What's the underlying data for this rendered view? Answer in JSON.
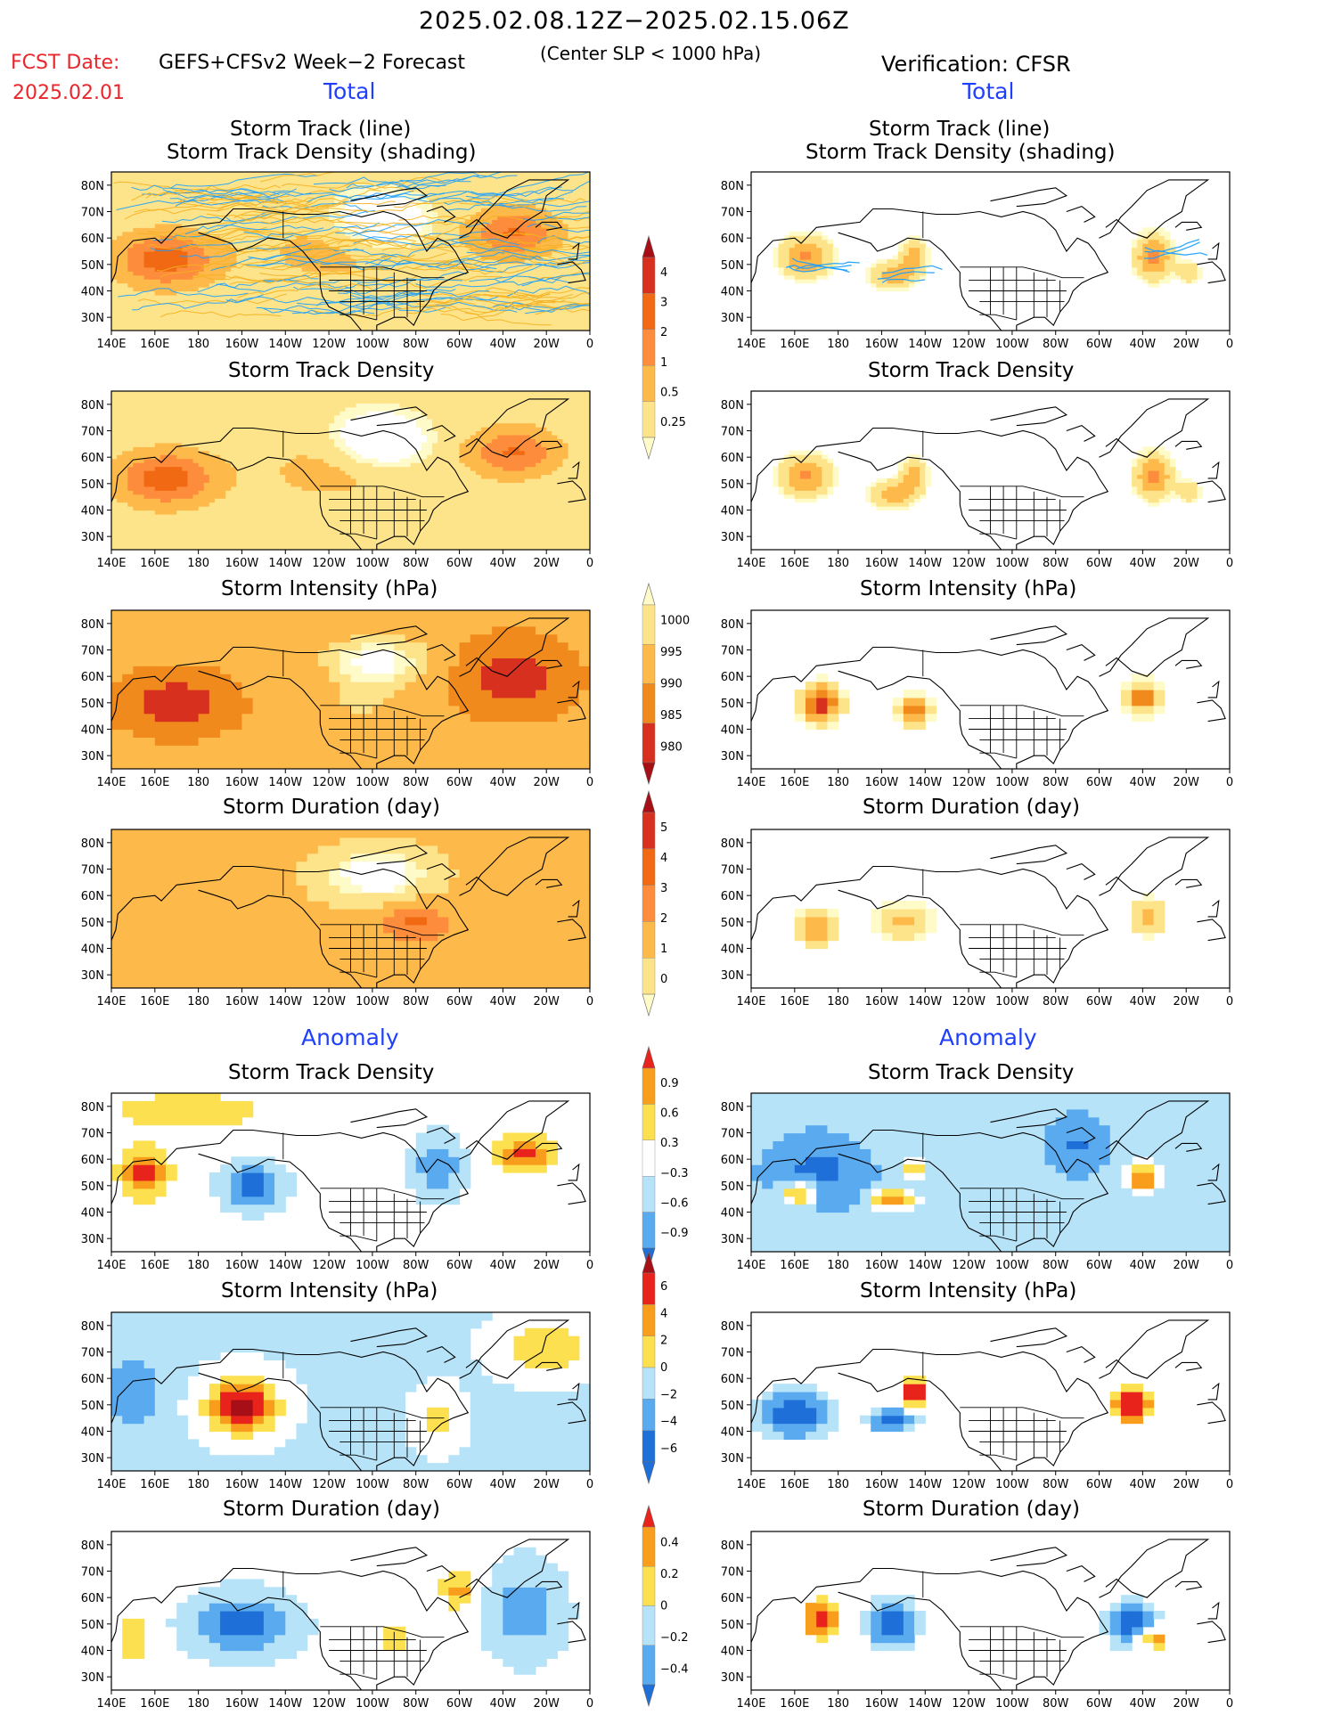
{
  "header": {
    "period": "2025.02.08.12Z−2025.02.15.06Z",
    "fcst_date_label": "FCST Date:",
    "fcst_date_value": "2025.02.01",
    "model_label": "GEFS+CFSv2 Week−2 Forecast",
    "criterion": "(Center SLP < 1000 hPa)",
    "verification": "Verification: CFSR"
  },
  "section_labels": {
    "total": "Total",
    "anomaly": "Anomaly"
  },
  "axes": {
    "lon_ticks": [
      "140E",
      "160E",
      "180",
      "160W",
      "140W",
      "120W",
      "100W",
      "80W",
      "60W",
      "40W",
      "20W",
      "0"
    ],
    "lat_ticks": [
      "30N",
      "40N",
      "50N",
      "60N",
      "70N",
      "80N"
    ]
  },
  "colors": {
    "red_text": "#e8262c",
    "blue_text": "#1f3fff",
    "map_line": "#000000",
    "track_line_blue": "#1a9fff",
    "track_line_orange": "#f5b020"
  },
  "panel_titles": {
    "track_line_1": "Storm Track (line)",
    "track_line_2": "Storm Track Density (shading)",
    "density": "Storm Track Density",
    "intensity": "Storm Intensity (hPa)",
    "duration": "Storm Duration (day)"
  },
  "colorbars": [
    {
      "name": "density-total",
      "labels": [
        "4",
        "3",
        "2",
        "1",
        "0.5",
        "0.25"
      ],
      "colors": [
        "#a50f15",
        "#d7301f",
        "#f16913",
        "#fd8d3c",
        "#fdb94a",
        "#fde48a",
        "#fffbc8"
      ]
    },
    {
      "name": "intensity-total",
      "labels": [
        "1000",
        "995",
        "990",
        "985",
        "980"
      ],
      "colors": [
        "#fffbc8",
        "#fde48a",
        "#fdb94a",
        "#f08a1c",
        "#d7301f",
        "#a50f15"
      ]
    },
    {
      "name": "duration-total",
      "labels": [
        "5",
        "4",
        "3",
        "2",
        "1",
        "0"
      ],
      "colors": [
        "#a50f15",
        "#d7301f",
        "#f16913",
        "#fd8d3c",
        "#fdb94a",
        "#fde48a",
        "#fffbc8"
      ]
    },
    {
      "name": "density-anom",
      "labels": [
        "0.9",
        "0.6",
        "0.3",
        "−0.3",
        "−0.6",
        "−0.9"
      ],
      "colors": [
        "#e8231c",
        "#f99d1c",
        "#fde04f",
        "#ffffff",
        "#b7e3f8",
        "#5aaaf0",
        "#1f6fd8"
      ]
    },
    {
      "name": "intensity-anom",
      "labels": [
        "6",
        "4",
        "2",
        "0",
        "−2",
        "−4",
        "−6"
      ],
      "colors": [
        "#a50f15",
        "#e8231c",
        "#f99d1c",
        "#fde04f",
        "#b7e3f8",
        "#5aaaf0",
        "#1f6fd8",
        "#1f6fd8"
      ]
    },
    {
      "name": "duration-anom",
      "labels": [
        "0.4",
        "0.2",
        "0",
        "−0.2",
        "−0.4"
      ],
      "colors": [
        "#e8231c",
        "#f99d1c",
        "#fde04f",
        "#b7e3f8",
        "#5aaaf0",
        "#1f6fd8"
      ]
    }
  ],
  "chart_data": [
    {
      "type": "heatmap",
      "panel": "Forecast Total: Storm Track (line) / Storm Track Density (shading)",
      "region": "140E to 0, 25N to 85N",
      "colorbar": [
        0.25,
        0.5,
        1,
        2,
        3,
        4
      ]
    },
    {
      "type": "heatmap",
      "panel": "Verification Total: Storm Track (line) / Storm Track Density (shading)",
      "region": "140E to 0, 25N to 85N"
    },
    {
      "type": "heatmap",
      "panel": "Forecast Total: Storm Track Density",
      "colorbar": [
        0.25,
        0.5,
        1,
        2,
        3,
        4
      ]
    },
    {
      "type": "heatmap",
      "panel": "Verification Total: Storm Track Density"
    },
    {
      "type": "heatmap",
      "panel": "Forecast Total: Storm Intensity (hPa)",
      "colorbar": [
        1000,
        995,
        990,
        985,
        980
      ]
    },
    {
      "type": "heatmap",
      "panel": "Verification Total: Storm Intensity (hPa)"
    },
    {
      "type": "heatmap",
      "panel": "Forecast Total: Storm Duration (day)",
      "colorbar": [
        0,
        1,
        2,
        3,
        4,
        5
      ]
    },
    {
      "type": "heatmap",
      "panel": "Verification Total: Storm Duration (day)"
    },
    {
      "type": "heatmap",
      "panel": "Forecast Anomaly: Storm Track Density",
      "colorbar": [
        -0.9,
        -0.6,
        -0.3,
        0.3,
        0.6,
        0.9
      ]
    },
    {
      "type": "heatmap",
      "panel": "Verification Anomaly: Storm Track Density"
    },
    {
      "type": "heatmap",
      "panel": "Forecast Anomaly: Storm Intensity (hPa)",
      "colorbar": [
        -6,
        -4,
        -2,
        0,
        2,
        4,
        6
      ]
    },
    {
      "type": "heatmap",
      "panel": "Verification Anomaly: Storm Intensity (hPa)"
    },
    {
      "type": "heatmap",
      "panel": "Forecast Anomaly: Storm Duration (day)",
      "colorbar": [
        -0.4,
        -0.2,
        0,
        0.2,
        0.4
      ]
    },
    {
      "type": "heatmap",
      "panel": "Verification Anomaly: Storm Duration (day)"
    }
  ]
}
